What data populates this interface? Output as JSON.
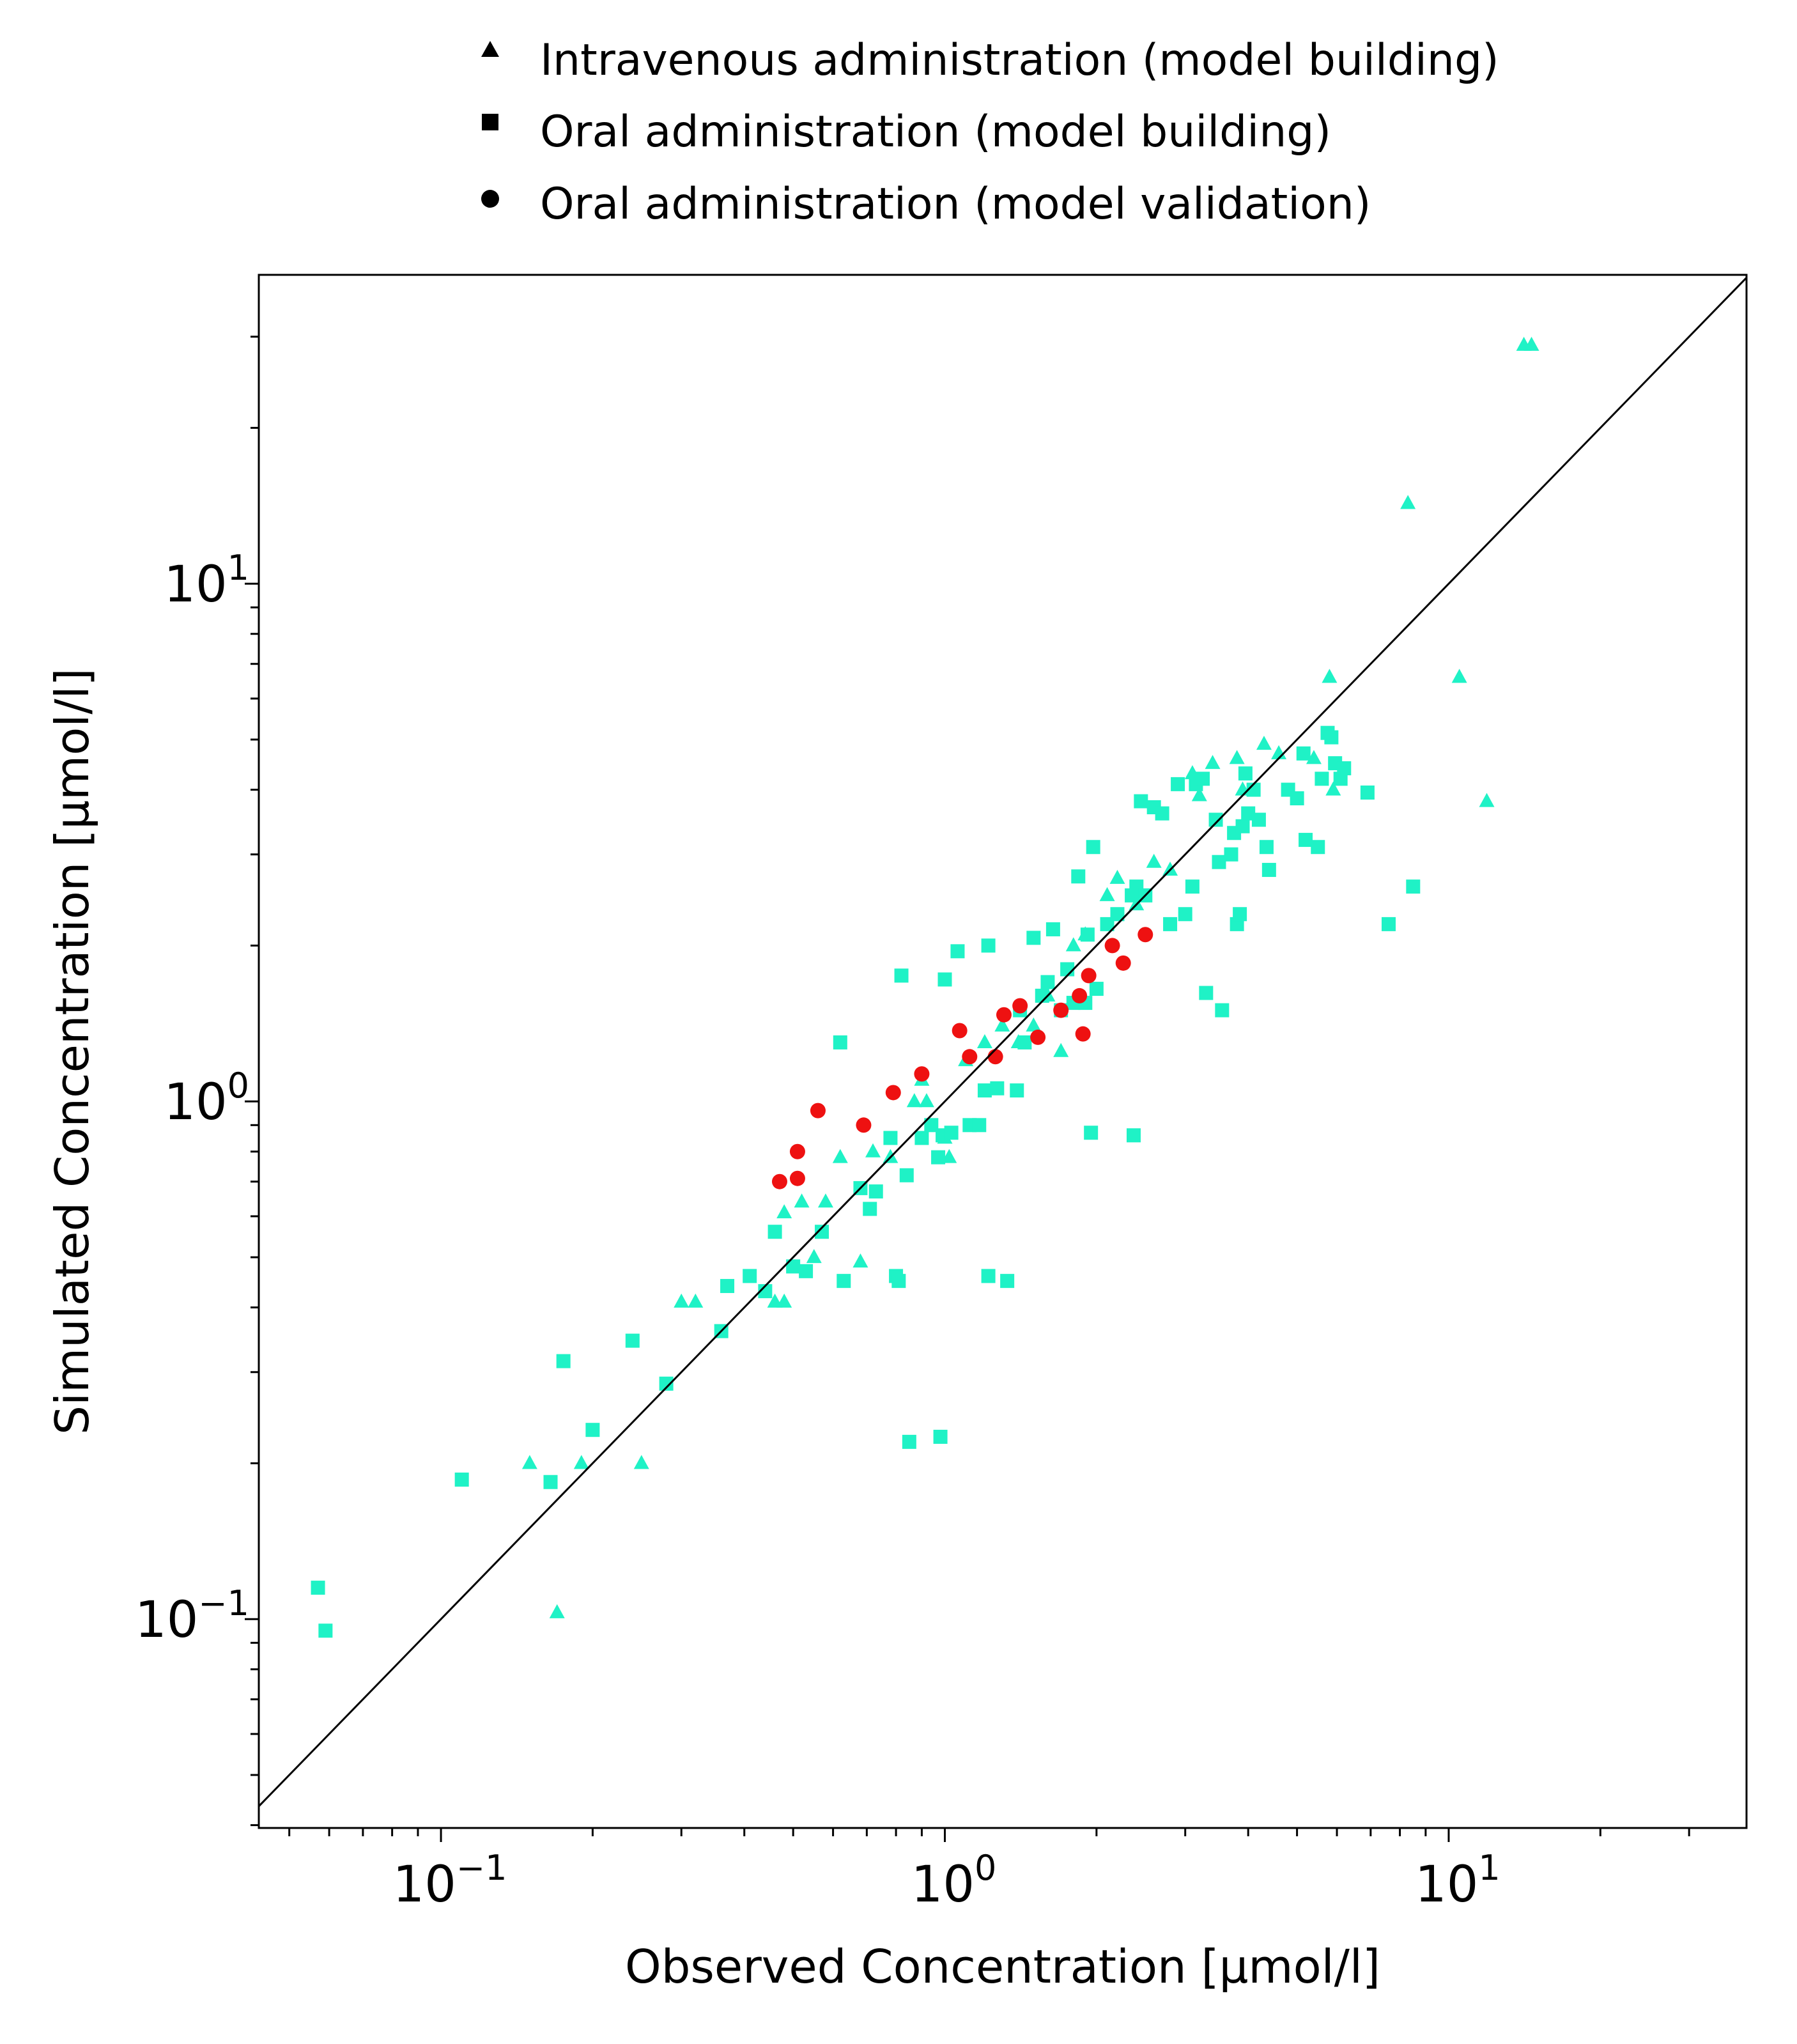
{
  "chart_data": {
    "type": "scatter",
    "xlabel": "Observed Concentration [µmol/l]",
    "ylabel": "Simulated Concentration [µmol/l]",
    "x_scale": "log",
    "y_scale": "log",
    "xlim": [
      0.0435,
      39.0
    ],
    "ylim": [
      0.0395,
      39.5
    ],
    "x_ticks": [
      {
        "base": "10",
        "exp": "−1",
        "value": 0.1
      },
      {
        "base": "10",
        "exp": "0",
        "value": 1
      },
      {
        "base": "10",
        "exp": "1",
        "value": 10
      }
    ],
    "y_ticks": [
      {
        "base": "10",
        "exp": "−1",
        "value": 0.1
      },
      {
        "base": "10",
        "exp": "0",
        "value": 1
      },
      {
        "base": "10",
        "exp": "1",
        "value": 10
      }
    ],
    "grid": false,
    "identity_line": true,
    "legend_position": "top-center, above plot",
    "legend": [
      {
        "label": "Intravenous administration (model building)",
        "marker": "triangle"
      },
      {
        "label": "Oral administration (model building)",
        "marker": "square"
      },
      {
        "label": "Oral administration (model validation)",
        "marker": "circle"
      }
    ],
    "series": [
      {
        "marker": "triangle",
        "color": "#1ff2c6",
        "points": [
          [
            14.1,
            28.9
          ],
          [
            14.6,
            28.9
          ],
          [
            8.3,
            14.3
          ],
          [
            10.5,
            6.6
          ],
          [
            11.9,
            3.8
          ],
          [
            5.8,
            6.6
          ],
          [
            4.3,
            4.9
          ],
          [
            3.8,
            4.6
          ],
          [
            4.6,
            4.7
          ],
          [
            3.4,
            4.5
          ],
          [
            3.9,
            4.0
          ],
          [
            3.1,
            4.3
          ],
          [
            5.4,
            4.6
          ],
          [
            5.9,
            4.0
          ],
          [
            3.2,
            3.9
          ],
          [
            2.6,
            2.9
          ],
          [
            2.2,
            2.7
          ],
          [
            2.8,
            2.8
          ],
          [
            2.1,
            2.5
          ],
          [
            2.4,
            2.4
          ],
          [
            1.8,
            2.0
          ],
          [
            1.9,
            2.1
          ],
          [
            1.6,
            1.6
          ],
          [
            1.5,
            1.4
          ],
          [
            1.4,
            1.3
          ],
          [
            1.3,
            1.4
          ],
          [
            1.2,
            1.3
          ],
          [
            1.1,
            1.2
          ],
          [
            1.7,
            1.25
          ],
          [
            0.9,
            1.1
          ],
          [
            0.87,
            1.0
          ],
          [
            0.92,
            1.0
          ],
          [
            1.0,
            0.85
          ],
          [
            1.02,
            0.78
          ],
          [
            0.62,
            0.78
          ],
          [
            0.72,
            0.8
          ],
          [
            0.78,
            0.78
          ],
          [
            0.52,
            0.64
          ],
          [
            0.58,
            0.64
          ],
          [
            0.48,
            0.61
          ],
          [
            0.55,
            0.5
          ],
          [
            0.68,
            0.49
          ],
          [
            0.46,
            0.41
          ],
          [
            0.48,
            0.41
          ],
          [
            0.3,
            0.41
          ],
          [
            0.32,
            0.41
          ],
          [
            0.15,
            0.2
          ],
          [
            0.19,
            0.2
          ],
          [
            0.25,
            0.2
          ],
          [
            0.17,
            0.103
          ]
        ]
      },
      {
        "marker": "square",
        "color": "#1ff2c6",
        "points": [
          [
            0.057,
            0.115
          ],
          [
            0.059,
            0.095
          ],
          [
            0.11,
            0.186
          ],
          [
            0.165,
            0.184
          ],
          [
            0.175,
            0.315
          ],
          [
            0.2,
            0.232
          ],
          [
            0.24,
            0.345
          ],
          [
            0.28,
            0.285
          ],
          [
            0.36,
            0.36
          ],
          [
            0.37,
            0.44
          ],
          [
            0.41,
            0.46
          ],
          [
            0.44,
            0.43
          ],
          [
            0.46,
            0.56
          ],
          [
            0.5,
            0.48
          ],
          [
            0.53,
            0.47
          ],
          [
            0.57,
            0.56
          ],
          [
            0.62,
            1.3
          ],
          [
            0.63,
            0.45
          ],
          [
            0.68,
            0.68
          ],
          [
            0.71,
            0.62
          ],
          [
            0.73,
            0.67
          ],
          [
            0.78,
            0.85
          ],
          [
            0.8,
            0.46
          ],
          [
            0.81,
            0.45
          ],
          [
            0.84,
            0.72
          ],
          [
            0.85,
            0.22
          ],
          [
            0.82,
            1.75
          ],
          [
            0.9,
            0.85
          ],
          [
            0.94,
            0.9
          ],
          [
            0.97,
            0.78
          ],
          [
            0.99,
            0.86
          ],
          [
            0.98,
            0.225
          ],
          [
            1.0,
            1.72
          ],
          [
            1.03,
            0.87
          ],
          [
            1.06,
            1.95
          ],
          [
            1.12,
            0.9
          ],
          [
            1.17,
            0.9
          ],
          [
            1.2,
            1.05
          ],
          [
            1.22,
            2.0
          ],
          [
            1.22,
            0.46
          ],
          [
            1.27,
            1.06
          ],
          [
            1.33,
            0.45
          ],
          [
            1.39,
            1.05
          ],
          [
            1.41,
            1.5
          ],
          [
            1.44,
            1.3
          ],
          [
            1.5,
            2.07
          ],
          [
            1.56,
            1.6
          ],
          [
            1.6,
            1.7
          ],
          [
            1.64,
            2.15
          ],
          [
            1.7,
            1.5
          ],
          [
            1.75,
            1.8
          ],
          [
            1.8,
            1.55
          ],
          [
            1.84,
            2.72
          ],
          [
            1.9,
            1.55
          ],
          [
            1.92,
            2.1
          ],
          [
            1.97,
            3.1
          ],
          [
            2.0,
            1.65
          ],
          [
            1.95,
            0.87
          ],
          [
            2.1,
            2.2
          ],
          [
            2.2,
            2.3
          ],
          [
            2.35,
            2.5
          ],
          [
            2.4,
            2.6
          ],
          [
            2.5,
            2.5
          ],
          [
            2.45,
            3.8
          ],
          [
            2.37,
            0.86
          ],
          [
            2.6,
            3.7
          ],
          [
            2.7,
            3.6
          ],
          [
            2.8,
            2.2
          ],
          [
            3.0,
            2.3
          ],
          [
            2.9,
            4.1
          ],
          [
            3.1,
            2.6
          ],
          [
            3.15,
            4.1
          ],
          [
            3.25,
            4.2
          ],
          [
            3.3,
            1.62
          ],
          [
            3.45,
            3.5
          ],
          [
            3.5,
            2.9
          ],
          [
            3.55,
            1.5
          ],
          [
            3.7,
            3.0
          ],
          [
            3.75,
            3.3
          ],
          [
            3.8,
            2.2
          ],
          [
            3.85,
            2.3
          ],
          [
            3.9,
            3.4
          ],
          [
            3.95,
            4.3
          ],
          [
            4.0,
            3.6
          ],
          [
            4.1,
            4.0
          ],
          [
            4.2,
            3.5
          ],
          [
            4.35,
            3.1
          ],
          [
            4.4,
            2.8
          ],
          [
            4.8,
            4.0
          ],
          [
            5.0,
            3.85
          ],
          [
            5.15,
            4.7
          ],
          [
            5.2,
            3.2
          ],
          [
            5.5,
            3.1
          ],
          [
            5.6,
            4.2
          ],
          [
            5.75,
            5.15
          ],
          [
            5.85,
            5.05
          ],
          [
            5.95,
            4.5
          ],
          [
            6.1,
            4.2
          ],
          [
            6.2,
            4.4
          ],
          [
            6.9,
            3.95
          ],
          [
            7.6,
            2.2
          ],
          [
            8.5,
            2.6
          ]
        ]
      },
      {
        "marker": "circle",
        "color": "#ee1111",
        "points": [
          [
            0.47,
            0.7
          ],
          [
            0.51,
            0.71
          ],
          [
            0.51,
            0.8
          ],
          [
            0.56,
            0.96
          ],
          [
            0.69,
            0.9
          ],
          [
            0.79,
            1.04
          ],
          [
            0.9,
            1.13
          ],
          [
            1.07,
            1.37
          ],
          [
            1.12,
            1.22
          ],
          [
            1.26,
            1.22
          ],
          [
            1.31,
            1.47
          ],
          [
            1.41,
            1.53
          ],
          [
            1.53,
            1.33
          ],
          [
            1.7,
            1.5
          ],
          [
            1.85,
            1.6
          ],
          [
            1.88,
            1.35
          ],
          [
            1.93,
            1.75
          ],
          [
            2.15,
            2.0
          ],
          [
            2.26,
            1.85
          ],
          [
            2.5,
            2.1
          ]
        ]
      }
    ]
  }
}
